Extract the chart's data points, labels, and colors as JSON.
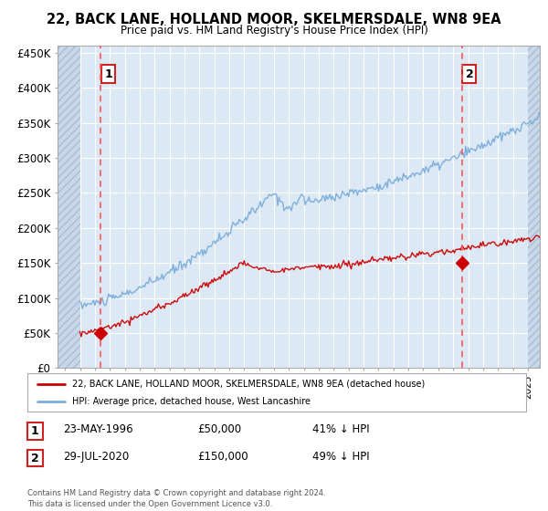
{
  "title": "22, BACK LANE, HOLLAND MOOR, SKELMERSDALE, WN8 9EA",
  "subtitle": "Price paid vs. HM Land Registry's House Price Index (HPI)",
  "background_color": "#ffffff",
  "plot_bg_color": "#dce9f5",
  "grid_color": "#ffffff",
  "sale1_date_num": 1996.4,
  "sale1_price": 50000,
  "sale1_label": "1",
  "sale2_date_num": 2020.57,
  "sale2_price": 150000,
  "sale2_label": "2",
  "sale_color": "#cc0000",
  "hpi_color": "#7aaddb",
  "vline_color": "#ff5555",
  "xlim_min": 1993.5,
  "xlim_max": 2025.8,
  "ylim_min": 0,
  "ylim_max": 460000,
  "yticks": [
    0,
    50000,
    100000,
    150000,
    200000,
    250000,
    300000,
    350000,
    400000,
    450000
  ],
  "ytick_labels": [
    "£0",
    "£50K",
    "£100K",
    "£150K",
    "£200K",
    "£250K",
    "£300K",
    "£350K",
    "£400K",
    "£450K"
  ],
  "legend_label1": "22, BACK LANE, HOLLAND MOOR, SKELMERSDALE, WN8 9EA (detached house)",
  "legend_label2": "HPI: Average price, detached house, West Lancashire",
  "table_row1_num": "1",
  "table_row1_date": "23-MAY-1996",
  "table_row1_price": "£50,000",
  "table_row1_hpi": "41% ↓ HPI",
  "table_row2_num": "2",
  "table_row2_date": "29-JUL-2020",
  "table_row2_price": "£150,000",
  "table_row2_hpi": "49% ↓ HPI",
  "footer": "Contains HM Land Registry data © Crown copyright and database right 2024.\nThis data is licensed under the Open Government Licence v3.0."
}
